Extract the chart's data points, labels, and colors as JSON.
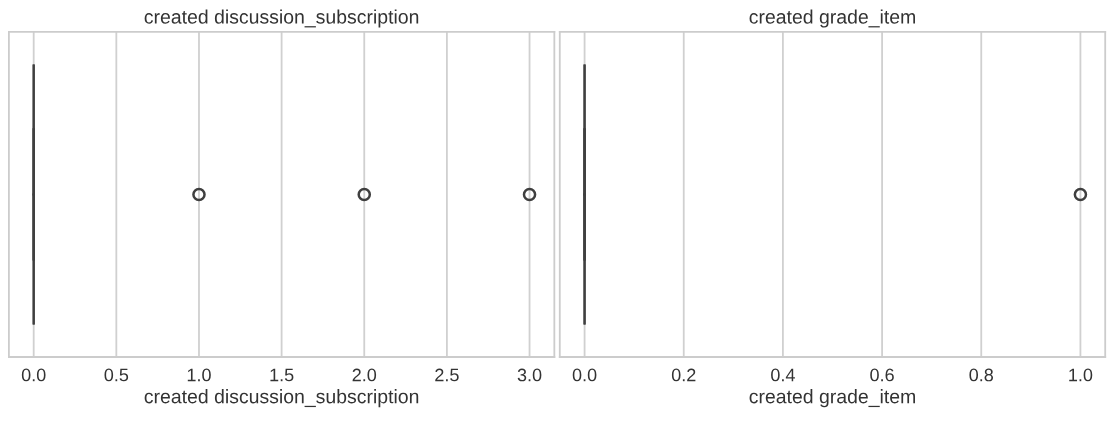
{
  "chart_data": [
    {
      "type": "box",
      "title": "created discussion_subscription",
      "xlabel": "created discussion_subscription",
      "orientation": "horizontal",
      "categories": [
        null
      ],
      "color": "#3f3f3f",
      "boxes": [
        {
          "low": 0,
          "q1": 0,
          "median": 0,
          "q3": 0,
          "high": 0,
          "outliers": [
            1,
            2,
            3
          ]
        }
      ],
      "xlim": [
        -0.15,
        3.15
      ],
      "xticks": [
        {
          "value": 0,
          "label": "0.0"
        },
        {
          "value": 0.5,
          "label": "0.5"
        },
        {
          "value": 1,
          "label": "1.0"
        },
        {
          "value": 1.5,
          "label": "1.5"
        },
        {
          "value": 2,
          "label": "2.0"
        },
        {
          "value": 2.5,
          "label": "2.5"
        },
        {
          "value": 3,
          "label": "3.0"
        }
      ],
      "grid": "x",
      "tick_labels": "x"
    },
    {
      "type": "box",
      "title": "created grade_item",
      "xlabel": "created grade_item",
      "orientation": "horizontal",
      "categories": [
        null
      ],
      "color": "#3f3f3f",
      "boxes": [
        {
          "low": 0,
          "q1": 0,
          "median": 0,
          "q3": 0,
          "high": 0,
          "outliers": [
            1
          ]
        }
      ],
      "xlim": [
        -0.05,
        1.05
      ],
      "xticks": [
        {
          "value": 0,
          "label": "0.0"
        },
        {
          "value": 0.2,
          "label": "0.2"
        },
        {
          "value": 0.4,
          "label": "0.4"
        },
        {
          "value": 0.6,
          "label": "0.6"
        },
        {
          "value": 0.8,
          "label": "0.8"
        },
        {
          "value": 1,
          "label": "1.0"
        }
      ],
      "grid": "x",
      "tick_labels": "x"
    }
  ]
}
